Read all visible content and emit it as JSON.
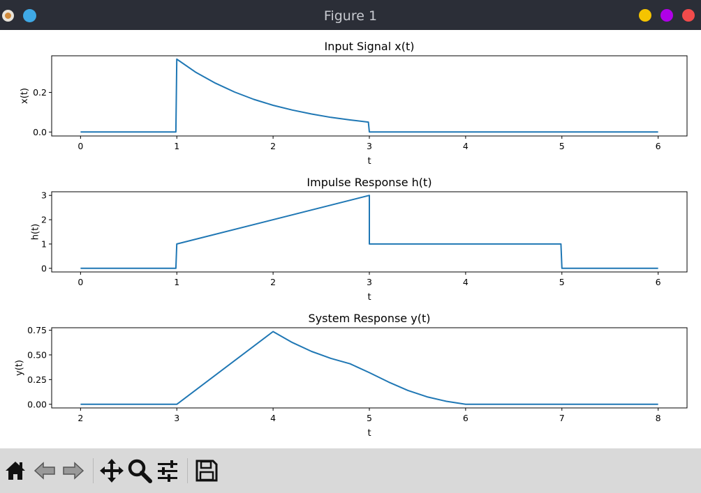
{
  "window": {
    "title": "Figure 1"
  },
  "titlebar_icons": [
    "matplotlib-logo-icon",
    "blue-circle-icon"
  ],
  "window_controls": [
    "minimize-button",
    "maximize-button",
    "close-button"
  ],
  "toolbar": {
    "buttons": [
      "home-icon",
      "back-icon",
      "forward-icon",
      "pan-icon",
      "zoom-icon",
      "configure-subplots-icon",
      "save-icon"
    ]
  },
  "colors": {
    "line": "#1f77b4",
    "titlebar": "#2b2e37",
    "toolbar": "#d9d9d9"
  },
  "chart_data": [
    {
      "type": "line",
      "title": "Input Signal x(t)",
      "xlabel": "t",
      "ylabel": "x(t)",
      "xlim": [
        -0.3,
        6.3
      ],
      "ylim": [
        -0.02,
        0.385
      ],
      "xticks": [
        "0",
        "1",
        "2",
        "3",
        "4",
        "5",
        "6"
      ],
      "yticks": [
        "0.0",
        "0.2"
      ],
      "series": [
        {
          "x": [
            0,
            0.99,
            1.0,
            1.2,
            1.4,
            1.6,
            1.8,
            2.0,
            2.2,
            2.4,
            2.6,
            2.8,
            2.99,
            3.0,
            6.0
          ],
          "y": [
            0,
            0,
            0.368,
            0.301,
            0.247,
            0.202,
            0.165,
            0.135,
            0.111,
            0.091,
            0.074,
            0.061,
            0.05,
            0,
            0
          ]
        }
      ]
    },
    {
      "type": "line",
      "title": "Impulse Response h(t)",
      "xlabel": "t",
      "ylabel": "h(t)",
      "xlim": [
        -0.3,
        6.3
      ],
      "ylim": [
        -0.15,
        3.15
      ],
      "xticks": [
        "0",
        "1",
        "2",
        "3",
        "4",
        "5",
        "6"
      ],
      "yticks": [
        "0",
        "1",
        "2",
        "3"
      ],
      "series": [
        {
          "x": [
            0,
            0.99,
            1.0,
            3.0,
            3.0,
            4.99,
            5.0,
            6.0
          ],
          "y": [
            0,
            0,
            1,
            3,
            1,
            1,
            0,
            0
          ]
        }
      ]
    },
    {
      "type": "line",
      "title": "System Response y(t)",
      "xlabel": "t",
      "ylabel": "y(t)",
      "xlim": [
        1.7,
        8.3
      ],
      "ylim": [
        -0.037,
        0.775
      ],
      "xticks": [
        "2",
        "3",
        "4",
        "5",
        "6",
        "7",
        "8"
      ],
      "yticks": [
        "0.00",
        "0.25",
        "0.50",
        "0.75"
      ],
      "series": [
        {
          "x": [
            2.0,
            3.0,
            4.0,
            4.2,
            4.4,
            4.6,
            4.8,
            5.0,
            5.2,
            5.4,
            5.6,
            5.8,
            6.0,
            8.0
          ],
          "y": [
            0,
            0,
            0.736,
            0.625,
            0.535,
            0.465,
            0.41,
            0.32,
            0.225,
            0.14,
            0.075,
            0.03,
            0,
            0
          ]
        }
      ]
    }
  ]
}
